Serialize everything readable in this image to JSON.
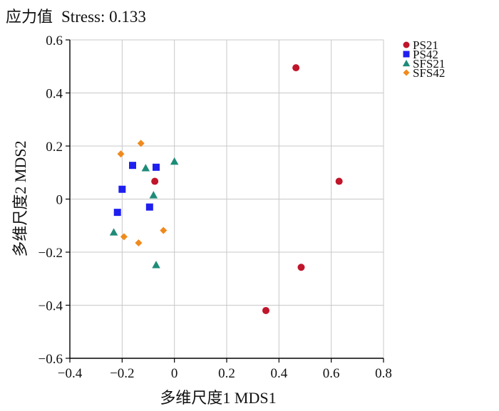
{
  "header": {
    "stress_label_cn": "应力值",
    "stress_text": "Stress: 0.133"
  },
  "chart_data": {
    "type": "scatter",
    "title": "",
    "xlabel": "多维尺度1 MDS1",
    "ylabel": "多维尺度2 MDS2",
    "xlim": [
      -0.4,
      0.8
    ],
    "ylim": [
      -0.6,
      0.6
    ],
    "xticks": [
      -0.4,
      -0.2,
      0,
      0.2,
      0.4,
      0.6,
      0.8
    ],
    "yticks": [
      -0.6,
      -0.4,
      -0.2,
      0,
      0.2,
      0.4,
      0.6
    ],
    "xtick_labels": [
      "−0.4",
      "−0.2",
      "0",
      "0.2",
      "0.4",
      "0.6",
      "0.8"
    ],
    "ytick_labels": [
      "−0.6",
      "−0.4",
      "−0.2",
      "0",
      "0.2",
      "0.4",
      "0.6"
    ],
    "grid": true,
    "legend_position": "top-right, outside plot",
    "series": [
      {
        "name": "PS21",
        "marker": "circle",
        "color": "#c0152a",
        "points": [
          [
            0.465,
            0.495
          ],
          [
            0.63,
            0.067
          ],
          [
            0.485,
            -0.257
          ],
          [
            0.35,
            -0.42
          ],
          [
            -0.075,
            0.067
          ]
        ]
      },
      {
        "name": "PS42",
        "marker": "square",
        "color": "#1f1ff0",
        "points": [
          [
            -0.16,
            0.127
          ],
          [
            -0.07,
            0.12
          ],
          [
            -0.2,
            0.037
          ],
          [
            -0.095,
            -0.03
          ],
          [
            -0.218,
            -0.05
          ]
        ]
      },
      {
        "name": "SFS21",
        "marker": "triangle",
        "color": "#1e8b78",
        "points": [
          [
            -0.11,
            0.117
          ],
          [
            0.0,
            0.142
          ],
          [
            -0.08,
            0.015
          ],
          [
            -0.232,
            -0.125
          ],
          [
            -0.07,
            -0.248
          ]
        ]
      },
      {
        "name": "SFS42",
        "marker": "diamond",
        "color": "#f08a1c",
        "points": [
          [
            -0.205,
            0.17
          ],
          [
            -0.128,
            0.21
          ],
          [
            -0.193,
            -0.142
          ],
          [
            -0.137,
            -0.165
          ],
          [
            -0.042,
            -0.118
          ]
        ]
      }
    ]
  }
}
